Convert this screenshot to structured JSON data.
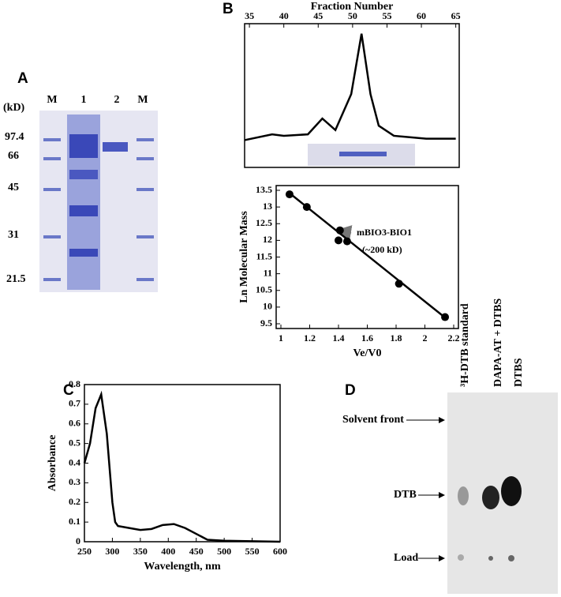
{
  "gel": {
    "label": "A",
    "unit": "(kD)",
    "lanes": [
      "M",
      "1",
      "2",
      "M"
    ],
    "markers": [
      97.4,
      66,
      45,
      31,
      21.5
    ]
  },
  "chart_data": [
    {
      "type": "line",
      "panel_label": "B",
      "title": "Fraction Number",
      "x": [
        34.3,
        38.3,
        40,
        43.5,
        45.6,
        47.5,
        49.8,
        51.3,
        52.6,
        53.8,
        56,
        60.7,
        65
      ],
      "values": [
        0.19,
        0.23,
        0.22,
        0.23,
        0.34,
        0.26,
        0.51,
        0.93,
        0.51,
        0.29,
        0.22,
        0.2,
        0.2
      ],
      "color": "#000000",
      "xlim": [
        34.3,
        65.5
      ],
      "xticks": [
        35,
        40,
        45,
        50,
        55,
        60,
        65
      ],
      "ylim": [
        0,
        1
      ]
    },
    {
      "type": "scatter",
      "xlabel": "Ve/V0",
      "ylabel": "Ln Molecular Mass",
      "x": [
        1.06,
        1.18,
        1.41,
        1.4,
        1.46,
        1.82,
        2.14
      ],
      "values": [
        13.38,
        13.0,
        12.3,
        12.0,
        11.97,
        10.7,
        9.7
      ],
      "fit_line": {
        "x": [
          1.05,
          2.15
        ],
        "values": [
          13.45,
          9.65
        ]
      },
      "annotations": [
        "mBIO3-BIO1",
        "(~200 kD)"
      ],
      "color": "#000000",
      "xlim": [
        1,
        2.2
      ],
      "xticks": [
        1,
        1.2,
        1.4,
        1.6,
        1.8,
        2,
        2.2
      ],
      "ylim": [
        9.5,
        13.5
      ],
      "yticks": [
        9.5,
        10,
        10.5,
        11,
        11.5,
        12,
        12.5,
        13,
        13.5
      ]
    },
    {
      "type": "line",
      "panel_label": "C",
      "xlabel": "Wavelength, nm",
      "ylabel": "Absorbance",
      "x": [
        250,
        260,
        270,
        280,
        290,
        300,
        305,
        310,
        330,
        350,
        370,
        390,
        410,
        430,
        450,
        470,
        500,
        600
      ],
      "values": [
        0.4,
        0.5,
        0.68,
        0.75,
        0.55,
        0.2,
        0.1,
        0.08,
        0.07,
        0.06,
        0.065,
        0.085,
        0.09,
        0.07,
        0.04,
        0.01,
        0.005,
        0
      ],
      "color": "#000000",
      "xlim": [
        250,
        600
      ],
      "xticks": [
        250,
        300,
        350,
        400,
        450,
        500,
        550,
        600
      ],
      "ylim": [
        0,
        0.8
      ],
      "yticks": [
        0,
        0.1,
        0.2,
        0.3,
        0.4,
        0.5,
        0.6,
        0.7,
        0.8
      ]
    }
  ],
  "tlc": {
    "label": "D",
    "lanes": [
      "³H-DTB standard",
      "DAPA-AT + DTBS",
      "DTBS"
    ],
    "rows": [
      "Solvent front",
      "DTB",
      "Load"
    ]
  }
}
